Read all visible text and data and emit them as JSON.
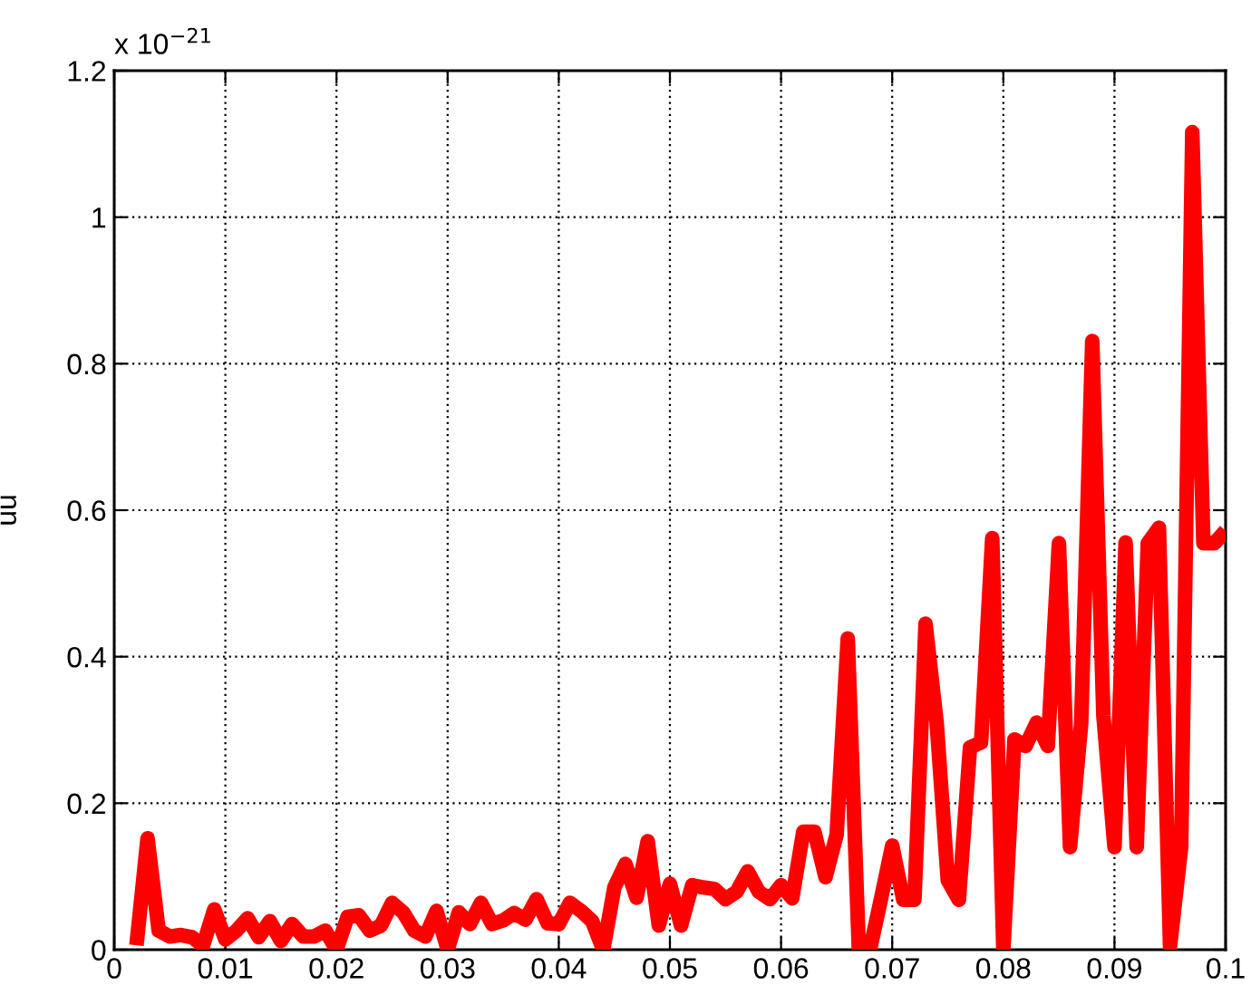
{
  "chart_data": {
    "type": "line",
    "ylabel": "uu",
    "annotations": [
      "x 10$^{−21}$"
    ],
    "x": [
      0.002,
      0.003,
      0.004,
      0.005,
      0.006,
      0.007,
      0.008,
      0.009,
      0.01,
      0.011,
      0.012,
      0.013,
      0.014,
      0.015,
      0.016,
      0.017,
      0.018,
      0.019,
      0.02,
      0.021,
      0.022,
      0.023,
      0.024,
      0.025,
      0.026,
      0.027,
      0.028,
      0.029,
      0.03,
      0.031,
      0.032,
      0.033,
      0.034,
      0.035,
      0.036,
      0.037,
      0.038,
      0.039,
      0.04,
      0.041,
      0.042,
      0.043,
      0.044,
      0.045,
      0.046,
      0.047,
      0.048,
      0.049,
      0.05,
      0.051,
      0.052,
      0.053,
      0.054,
      0.055,
      0.056,
      0.057,
      0.058,
      0.059,
      0.06,
      0.061,
      0.062,
      0.063,
      0.064,
      0.065,
      0.066,
      0.067,
      0.068,
      0.069,
      0.07,
      0.071,
      0.072,
      0.073,
      0.074,
      0.075,
      0.076,
      0.077,
      0.078,
      0.079,
      0.08,
      0.081,
      0.082,
      0.083,
      0.084,
      0.085,
      0.086,
      0.087,
      0.088,
      0.089,
      0.09,
      0.091,
      0.092,
      0.093,
      0.094,
      0.095,
      0.096,
      0.097,
      0.098,
      0.099,
      0.1
    ],
    "series": [
      {
        "color": "#ff0000",
        "values": [
          0.006,
          0.152,
          0.026,
          0.018,
          0.02,
          0.017,
          0.006,
          0.055,
          0.014,
          0.026,
          0.043,
          0.017,
          0.039,
          0.012,
          0.035,
          0.018,
          0.018,
          0.026,
          0.0,
          0.045,
          0.047,
          0.026,
          0.033,
          0.064,
          0.051,
          0.026,
          0.018,
          0.053,
          0.0,
          0.051,
          0.035,
          0.064,
          0.035,
          0.04,
          0.05,
          0.041,
          0.069,
          0.036,
          0.035,
          0.064,
          0.053,
          0.039,
          0.0,
          0.085,
          0.117,
          0.071,
          0.148,
          0.033,
          0.09,
          0.033,
          0.088,
          0.085,
          0.083,
          0.069,
          0.079,
          0.107,
          0.079,
          0.069,
          0.088,
          0.07,
          0.161,
          0.161,
          0.099,
          0.157,
          0.425,
          0.0,
          0.0,
          0.07,
          0.142,
          0.068,
          0.068,
          0.445,
          0.31,
          0.095,
          0.068,
          0.276,
          0.283,
          0.562,
          0.0,
          0.287,
          0.278,
          0.31,
          0.278,
          0.555,
          0.14,
          0.308,
          0.831,
          0.32,
          0.14,
          0.556,
          0.14,
          0.555,
          0.576,
          0.005,
          0.14,
          1.116,
          0.555,
          0.555,
          0.572
        ]
      }
    ],
    "xlim": [
      0,
      0.1
    ],
    "ylim": [
      0,
      1.2
    ],
    "xticks": [
      0,
      0.01,
      0.02,
      0.03,
      0.04,
      0.05,
      0.06,
      0.07,
      0.08,
      0.09,
      0.1
    ],
    "yticks": [
      0,
      0.2,
      0.4,
      0.6,
      0.8,
      1,
      1.2
    ],
    "grid": true,
    "line_style": "solid"
  }
}
